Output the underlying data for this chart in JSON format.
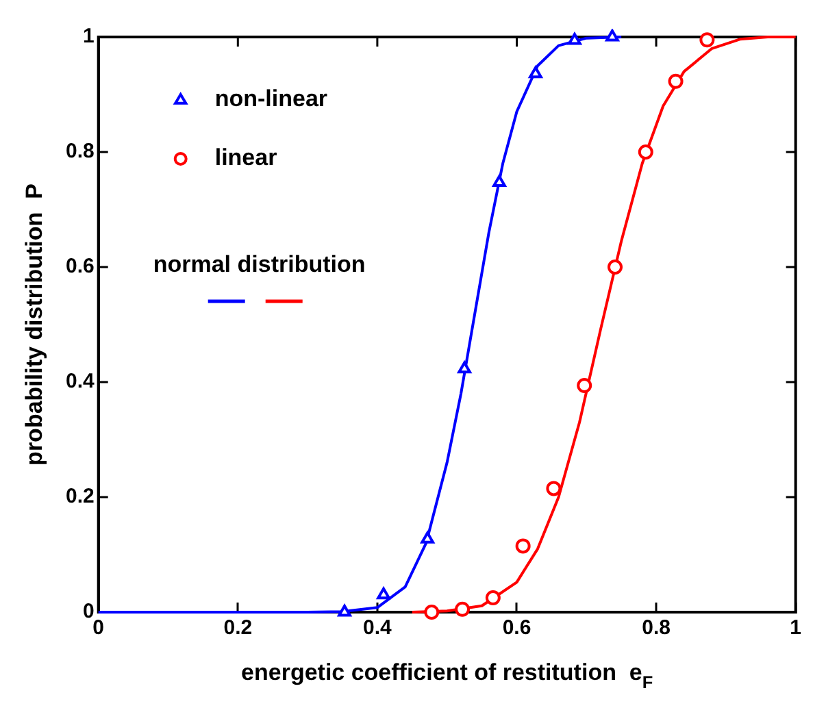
{
  "chart_data": {
    "type": "scatter",
    "xlabel": "energetic coefficient of restitution  e$_{F}$",
    "ylabel": "probability distribution  P",
    "xlim": [
      0,
      1
    ],
    "xticks": [
      0,
      0.2,
      0.4,
      0.6,
      0.8,
      1
    ],
    "ylim": [
      0,
      1
    ],
    "yticks": [
      0,
      0.2,
      0.4,
      0.6,
      0.8,
      1
    ],
    "grid": false,
    "legend": "top left",
    "annotations": [
      "normal distribution"
    ],
    "series": [
      {
        "name": "non-linear",
        "type": "scatter",
        "marker": "triangle",
        "color": "#0000ff",
        "x": [
          0.353,
          0.409,
          0.472,
          0.525,
          0.575,
          0.627,
          0.683,
          0.737
        ],
        "values": [
          0.0,
          0.03,
          0.127,
          0.423,
          0.747,
          0.936,
          0.994,
          1.0
        ]
      },
      {
        "name": "linear",
        "type": "scatter",
        "marker": "circle",
        "color": "#ff0000",
        "x": [
          0.478,
          0.522,
          0.566,
          0.609,
          0.653,
          0.697,
          0.741,
          0.785,
          0.828,
          0.873
        ],
        "values": [
          0.0,
          0.005,
          0.025,
          0.115,
          0.215,
          0.394,
          0.6,
          0.8,
          0.923,
          0.995
        ]
      },
      {
        "type": "line",
        "marker": "none",
        "line_style": "solid",
        "color": "#0000ff",
        "x": [
          0,
          0.3,
          0.35,
          0.4,
          0.44,
          0.47,
          0.5,
          0.52,
          0.54,
          0.56,
          0.58,
          0.6,
          0.63,
          0.66,
          0.7,
          0.75
        ],
        "values": [
          0,
          0,
          0.001,
          0.008,
          0.044,
          0.12,
          0.26,
          0.38,
          0.52,
          0.66,
          0.78,
          0.87,
          0.95,
          0.985,
          0.998,
          1
        ]
      },
      {
        "type": "line",
        "marker": "none",
        "line_style": "solid",
        "color": "#ff0000",
        "x": [
          0.45,
          0.5,
          0.55,
          0.6,
          0.63,
          0.66,
          0.69,
          0.72,
          0.75,
          0.78,
          0.81,
          0.84,
          0.88,
          0.92,
          0.96,
          1
        ],
        "values": [
          0,
          0.002,
          0.011,
          0.052,
          0.11,
          0.2,
          0.33,
          0.49,
          0.645,
          0.78,
          0.88,
          0.94,
          0.98,
          0.996,
          1,
          1
        ]
      }
    ]
  }
}
